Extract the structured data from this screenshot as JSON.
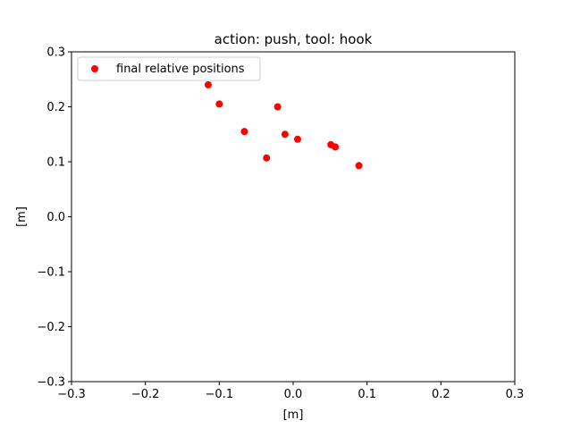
{
  "chart_data": {
    "type": "scatter",
    "title": "action: push, tool: hook",
    "xlabel": "[m]",
    "ylabel": "[m]",
    "xlim": [
      -0.3,
      0.3
    ],
    "ylim": [
      -0.3,
      0.3
    ],
    "xticks": [
      -0.3,
      -0.2,
      -0.1,
      0.0,
      0.1,
      0.2,
      0.3
    ],
    "yticks": [
      -0.3,
      -0.2,
      -0.1,
      0.0,
      0.1,
      0.2,
      0.3
    ],
    "xtick_labels": [
      "−0.3",
      "−0.2",
      "−0.1",
      "0.0",
      "0.1",
      "0.2",
      "0.3"
    ],
    "ytick_labels": [
      "−0.3",
      "−0.2",
      "−0.1",
      "0.0",
      "0.1",
      "0.2",
      "0.3"
    ],
    "grid": false,
    "legend_position": "top-left",
    "series": [
      {
        "name": "final relative positions",
        "color": "#ff0000",
        "x": [
          -0.115,
          -0.1,
          -0.066,
          -0.021,
          -0.011,
          0.006,
          -0.036,
          0.051,
          0.057,
          0.089
        ],
        "y": [
          0.24,
          0.205,
          0.155,
          0.2,
          0.15,
          0.141,
          0.107,
          0.131,
          0.127,
          0.093
        ]
      }
    ]
  }
}
